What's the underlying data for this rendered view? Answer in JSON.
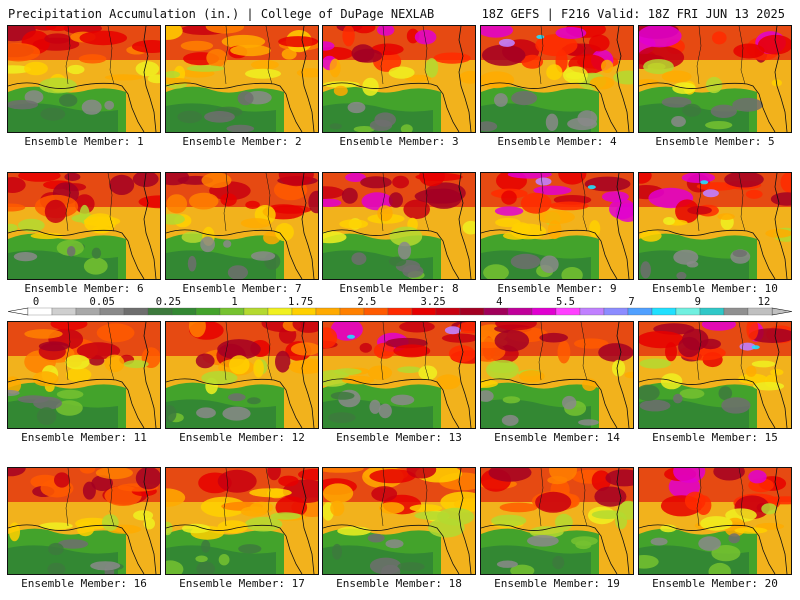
{
  "header": {
    "title": "Precipitation Accumulation (in.) | College of DuPage NEXLAB",
    "run_info": "18Z GEFS | F216 Valid: 18Z FRI JUN 13 2025"
  },
  "members": [
    {
      "label": "Ensemble Member: 1",
      "wet": 0.78
    },
    {
      "label": "Ensemble Member: 2",
      "wet": 0.48
    },
    {
      "label": "Ensemble Member: 3",
      "wet": 0.85
    },
    {
      "label": "Ensemble Member: 4",
      "wet": 0.88
    },
    {
      "label": "Ensemble Member: 5",
      "wet": 0.82
    },
    {
      "label": "Ensemble Member: 6",
      "wet": 0.8
    },
    {
      "label": "Ensemble Member: 7",
      "wet": 0.7
    },
    {
      "label": "Ensemble Member: 8",
      "wet": 0.84
    },
    {
      "label": "Ensemble Member: 9",
      "wet": 0.9
    },
    {
      "label": "Ensemble Member: 10",
      "wet": 0.92
    },
    {
      "label": "Ensemble Member: 11",
      "wet": 0.76
    },
    {
      "label": "Ensemble Member: 12",
      "wet": 0.72
    },
    {
      "label": "Ensemble Member: 13",
      "wet": 0.88
    },
    {
      "label": "Ensemble Member: 14",
      "wet": 0.7
    },
    {
      "label": "Ensemble Member: 15",
      "wet": 0.9
    },
    {
      "label": "Ensemble Member: 16",
      "wet": 0.76
    },
    {
      "label": "Ensemble Member: 17",
      "wet": 0.6
    },
    {
      "label": "Ensemble Member: 18",
      "wet": 0.64
    },
    {
      "label": "Ensemble Member: 19",
      "wet": 0.66
    },
    {
      "label": "Ensemble Member: 20",
      "wet": 0.82
    }
  ],
  "legend": {
    "tick_labels": [
      "0",
      "0.05",
      "0.25",
      "1",
      "1.75",
      "2.5",
      "3.25",
      "4",
      "5.5",
      "7",
      "9",
      "12"
    ],
    "colors": [
      "#ffffff",
      "#cfcfcf",
      "#a8a8a8",
      "#8a8a8a",
      "#6e6e6e",
      "#3d7a3d",
      "#338833",
      "#43a32b",
      "#76c230",
      "#b4d930",
      "#f0f020",
      "#ffd000",
      "#ffaa00",
      "#ff8000",
      "#ff5a00",
      "#ff2a00",
      "#e60000",
      "#c80010",
      "#a30023",
      "#a0005a",
      "#c0009a",
      "#e000d0",
      "#ff40ff",
      "#c080ff",
      "#8c8cff",
      "#50a0ff",
      "#20e0ff",
      "#70f0e0",
      "#30c8c8",
      "#909090",
      "#c0c0c0"
    ]
  }
}
